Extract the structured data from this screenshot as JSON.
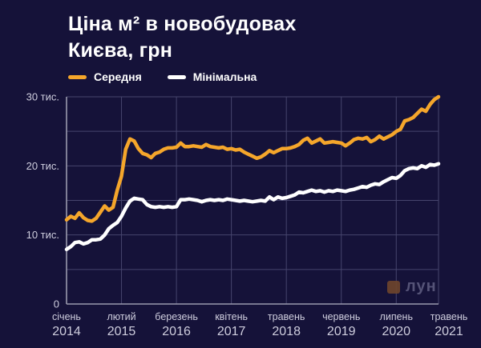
{
  "title": {
    "line1": "Ціна м² в новобудовах",
    "line2": "Києва, грн"
  },
  "watermark": {
    "text": "лун",
    "square_color": "#6f452c",
    "text_color": "#5c5b7e"
  },
  "colors": {
    "background": "#151239",
    "grid": "#46456d",
    "axis": "#9a99ae",
    "label_text": "#cfcede",
    "title_text": "#ffffff",
    "accent_orange": "#F5A62B",
    "line_white": "#FFFFFF"
  },
  "chart_data": {
    "type": "line",
    "title": "Ціна м² в новобудовах Києва, грн",
    "values_unit": "тис. грн",
    "x_unit": "month",
    "x_start": "січень 2014",
    "x_end": "травень 2021",
    "n_points": 89,
    "ylim": [
      0,
      30
    ],
    "grid_step": 5,
    "legend_position": "top",
    "y_ticks": [
      {
        "v": 0,
        "label": "0"
      },
      {
        "v": 10,
        "label": "10 тис."
      },
      {
        "v": 20,
        "label": "20 тис."
      },
      {
        "v": 30,
        "label": "30 тис."
      }
    ],
    "x_ticks": [
      {
        "m": 0,
        "month": "січень",
        "year": "2014"
      },
      {
        "m": 13,
        "month": "лютий",
        "year": "2015"
      },
      {
        "m": 26,
        "month": "березень",
        "year": "2016"
      },
      {
        "m": 39,
        "month": "квітень",
        "year": "2017"
      },
      {
        "m": 52,
        "month": "травень",
        "year": "2018"
      },
      {
        "m": 65,
        "month": "червень",
        "year": "2019"
      },
      {
        "m": 78,
        "month": "липень",
        "year": "2020"
      },
      {
        "m": 88,
        "month": "травень",
        "year": "2021"
      }
    ],
    "series": [
      {
        "name": "Середня",
        "color": "#F5A62B",
        "values": [
          12.2,
          12.7,
          12.4,
          13.2,
          12.5,
          12.1,
          12.0,
          12.4,
          13.3,
          14.2,
          13.6,
          14.0,
          16.5,
          18.5,
          22.4,
          23.9,
          23.6,
          22.5,
          21.8,
          21.6,
          21.2,
          21.8,
          22.0,
          22.4,
          22.6,
          22.6,
          22.7,
          23.3,
          22.8,
          22.8,
          22.9,
          22.8,
          22.7,
          23.1,
          22.8,
          22.7,
          22.6,
          22.7,
          22.4,
          22.5,
          22.3,
          22.4,
          22.0,
          21.7,
          21.4,
          21.1,
          21.3,
          21.7,
          22.2,
          21.9,
          22.2,
          22.5,
          22.5,
          22.6,
          22.8,
          23.1,
          23.7,
          24.0,
          23.3,
          23.6,
          23.9,
          23.3,
          23.4,
          23.5,
          23.4,
          23.3,
          22.9,
          23.3,
          23.8,
          24.0,
          23.9,
          24.1,
          23.5,
          23.8,
          24.3,
          23.9,
          24.2,
          24.5,
          25.0,
          25.3,
          26.5,
          26.7,
          27.0,
          27.6,
          28.2,
          27.9,
          28.9,
          29.6,
          30.0
        ]
      },
      {
        "name": "Мінімальна",
        "color": "#FFFFFF",
        "values": [
          7.9,
          8.3,
          8.9,
          9.0,
          8.7,
          8.9,
          9.3,
          9.3,
          9.4,
          10.0,
          10.9,
          11.4,
          11.8,
          12.7,
          13.9,
          14.9,
          15.3,
          15.2,
          15.1,
          14.4,
          14.1,
          14.0,
          14.1,
          14.0,
          14.1,
          14.0,
          14.1,
          15.1,
          15.1,
          15.2,
          15.1,
          15.0,
          14.8,
          15.0,
          15.1,
          15.0,
          15.1,
          15.0,
          15.2,
          15.1,
          15.0,
          14.9,
          15.0,
          14.9,
          14.8,
          14.9,
          15.0,
          14.9,
          15.5,
          15.1,
          15.5,
          15.3,
          15.4,
          15.6,
          15.8,
          16.2,
          16.1,
          16.3,
          16.5,
          16.3,
          16.4,
          16.2,
          16.4,
          16.3,
          16.5,
          16.4,
          16.3,
          16.5,
          16.6,
          16.8,
          17.0,
          16.9,
          17.2,
          17.4,
          17.3,
          17.7,
          18.0,
          18.3,
          18.2,
          18.6,
          19.3,
          19.6,
          19.7,
          19.6,
          20.0,
          19.8,
          20.2,
          20.1,
          20.3
        ]
      }
    ]
  }
}
